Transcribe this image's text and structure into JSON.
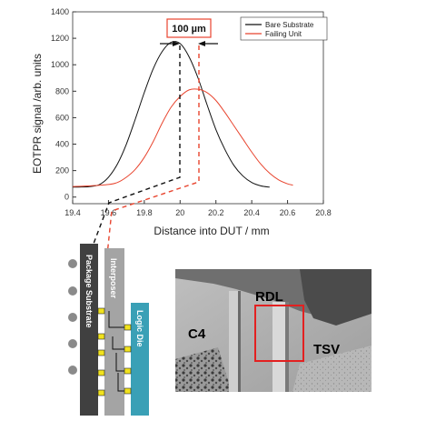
{
  "chart_data": {
    "type": "line",
    "xlabel": "Distance into DUT / mm",
    "ylabel": "EOTPR signal /arb. units",
    "xlim": [
      19.4,
      20.8
    ],
    "ylim": [
      -50,
      1400
    ],
    "x_ticks": [
      "19.4",
      "19.6",
      "19.8",
      "20",
      "20.2",
      "20.4",
      "20.6",
      "20.8"
    ],
    "y_ticks": [
      "0",
      "200",
      "400",
      "600",
      "800",
      "1000",
      "1200",
      "1400"
    ],
    "legend_position": "top-right",
    "annotation": "100 µm",
    "colors": {
      "bare": "#111111",
      "failing": "#e8442e"
    },
    "series": [
      {
        "name": "Bare Substrate",
        "x": [
          19.4,
          19.45,
          19.5,
          19.55,
          19.6,
          19.65,
          19.7,
          19.75,
          19.8,
          19.85,
          19.9,
          19.95,
          20.0,
          20.05,
          20.1,
          20.15,
          20.2,
          20.25,
          20.3,
          20.35,
          20.4,
          20.45,
          20.5
        ],
        "y": [
          75,
          76,
          80,
          95,
          150,
          250,
          400,
          590,
          790,
          970,
          1100,
          1170,
          1160,
          1060,
          900,
          700,
          510,
          360,
          240,
          160,
          110,
          85,
          75
        ]
      },
      {
        "name": "Failing Unit",
        "x": [
          19.4,
          19.5,
          19.6,
          19.65,
          19.7,
          19.75,
          19.8,
          19.85,
          19.9,
          19.95,
          20.0,
          20.05,
          20.1,
          20.15,
          20.2,
          20.25,
          20.3,
          20.35,
          20.4,
          20.45,
          20.5,
          20.55,
          20.6,
          20.63
        ],
        "y": [
          80,
          85,
          95,
          110,
          150,
          210,
          300,
          420,
          560,
          680,
          760,
          810,
          815,
          790,
          730,
          640,
          540,
          440,
          340,
          250,
          180,
          130,
          100,
          90
        ]
      }
    ]
  },
  "stack_labels": {
    "package_substrate": "Package Substrate",
    "interposer": "Interposer",
    "logic_die": "Logic Die"
  },
  "photo_labels": {
    "rdl": "RDL",
    "c4": "C4",
    "tsv": "TSV"
  }
}
